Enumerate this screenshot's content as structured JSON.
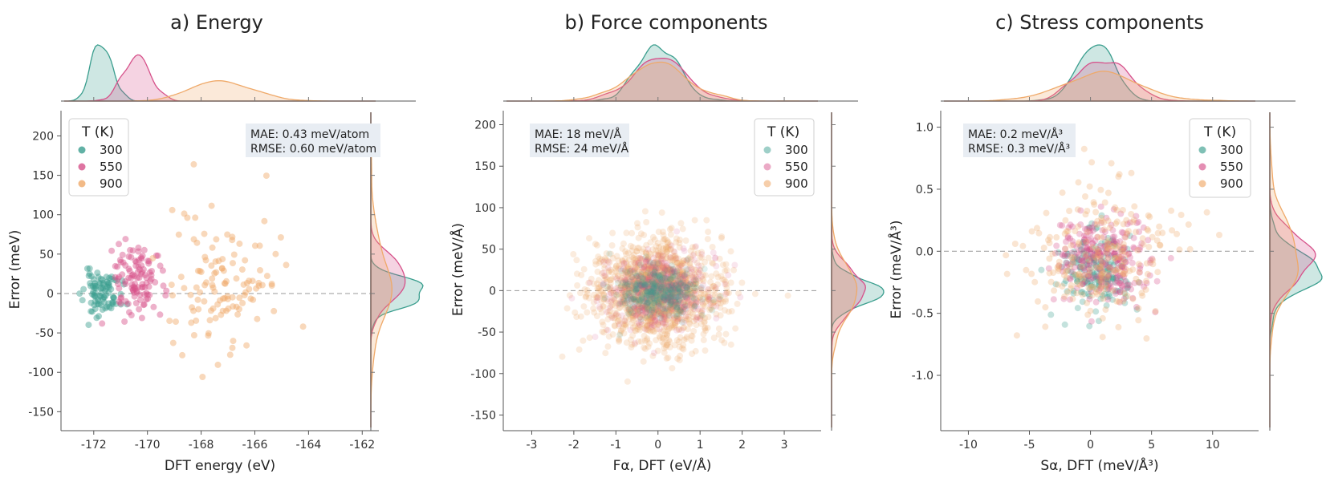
{
  "chart_data": [
    {
      "type": "scatter",
      "title": "a) Energy",
      "xlabel": "DFT energy (eV)",
      "ylabel": "Error (meV)",
      "xlim": [
        -173.1,
        -161.5
      ],
      "ylim": [
        -170,
        230
      ],
      "xticks": [
        -172,
        -170,
        -168,
        -166,
        -164,
        -162
      ],
      "yticks": [
        -150,
        -100,
        -50,
        0,
        50,
        100,
        150,
        200
      ],
      "xtick_labels": [
        "-172",
        "-170",
        "-168",
        "-166",
        "-164",
        "-162"
      ],
      "ytick_labels": [
        "-150",
        "-100",
        "-50",
        "0",
        "50",
        "100",
        "150",
        "200"
      ],
      "grid": false,
      "legend": {
        "title": "T (K)",
        "placement": "top-left"
      },
      "stats": {
        "mae": "MAE: 0.43 meV/atom",
        "rmse": "RMSE: 0.60 meV/atom",
        "placement": "top-right"
      },
      "series": [
        {
          "name": "300",
          "color": "#3a9e8e",
          "x_mean": -171.7,
          "x_sd": 0.35,
          "y_mean": 0,
          "y_sd": 14,
          "n": 90,
          "alpha": 0.45,
          "seed": 11
        },
        {
          "name": "550",
          "color": "#d6518a",
          "x_mean": -170.4,
          "x_sd": 0.5,
          "y_mean": 18,
          "y_sd": 25,
          "n": 110,
          "alpha": 0.45,
          "seed": 23
        },
        {
          "name": "900",
          "color": "#efa969",
          "x_mean": -167.1,
          "x_sd": 1.0,
          "y_mean": 15,
          "y_sd": 48,
          "n": 120,
          "alpha": 0.45,
          "seed": 37
        }
      ],
      "x_density_range": [
        -173.1,
        -161.5
      ],
      "y_density_range": [
        -170,
        230
      ]
    },
    {
      "type": "scatter",
      "title": "b) Force components",
      "xlabel": "Fα, DFT (eV/Å)",
      "ylabel": "Error (meV/Å)",
      "xlim": [
        -3.6,
        3.8
      ],
      "ylim": [
        -165,
        215
      ],
      "xticks": [
        -3,
        -2,
        -1,
        0,
        1,
        2,
        3
      ],
      "yticks": [
        -150,
        -100,
        -50,
        0,
        50,
        100,
        150,
        200
      ],
      "xtick_labels": [
        "-3",
        "-2",
        "-1",
        "0",
        "1",
        "2",
        "3"
      ],
      "ytick_labels": [
        "-150",
        "-100",
        "-50",
        "0",
        "50",
        "100",
        "150",
        "200"
      ],
      "grid": false,
      "legend": {
        "title": "T (K)",
        "placement": "top-right"
      },
      "stats": {
        "mae": "MAE: 18 meV/Å",
        "rmse": "RMSE: 24 meV/Å",
        "placement": "top-left"
      },
      "series": [
        {
          "name": "300",
          "color": "#3a9e8e",
          "x_mean": 0,
          "x_sd": 0.45,
          "y_mean": 0,
          "y_sd": 16,
          "n": 350,
          "alpha": 0.14,
          "seed": 41
        },
        {
          "name": "550",
          "color": "#d6518a",
          "x_mean": 0,
          "x_sd": 0.6,
          "y_mean": 0,
          "y_sd": 22,
          "n": 450,
          "alpha": 0.14,
          "seed": 53
        },
        {
          "name": "900",
          "color": "#efa969",
          "x_mean": 0,
          "x_sd": 0.75,
          "y_mean": 0,
          "y_sd": 30,
          "n": 1400,
          "alpha": 0.22,
          "seed": 67
        }
      ],
      "x_density_range": [
        -3.6,
        3.8
      ],
      "y_density_range": [
        -165,
        215
      ]
    },
    {
      "type": "scatter",
      "title": "c) Stress components",
      "xlabel": "Sα, DFT (meV/Å³)",
      "ylabel": "Error (meV/Å³)",
      "xlim": [
        -12,
        13.5
      ],
      "ylim": [
        -1.42,
        1.12
      ],
      "xticks": [
        -10,
        -5,
        0,
        5,
        10
      ],
      "yticks": [
        -1.0,
        -0.5,
        0.0,
        0.5,
        1.0
      ],
      "xtick_labels": [
        "-10",
        "-5",
        "0",
        "5",
        "10"
      ],
      "ytick_labels": [
        "-1.0",
        "-0.5",
        "0.0",
        "0.5",
        "1.0"
      ],
      "grid": false,
      "legend": {
        "title": "T (K)",
        "placement": "top-right"
      },
      "stats": {
        "mae": "MAE: 0.2 meV/Å³",
        "rmse": "RMSE: 0.3 meV/Å³",
        "placement": "top-left"
      },
      "series": [
        {
          "name": "300",
          "color": "#3a9e8e",
          "x_mean": 0.5,
          "x_sd": 1.5,
          "y_mean": -0.15,
          "y_sd": 0.15,
          "n": 200,
          "alpha": 0.3,
          "seed": 71
        },
        {
          "name": "550",
          "color": "#d6518a",
          "x_mean": 0.8,
          "x_sd": 2.0,
          "y_mean": -0.05,
          "y_sd": 0.18,
          "n": 260,
          "alpha": 0.3,
          "seed": 83
        },
        {
          "name": "900",
          "color": "#efa969",
          "x_mean": 0.8,
          "x_sd": 3.0,
          "y_mean": -0.05,
          "y_sd": 0.28,
          "n": 240,
          "alpha": 0.3,
          "seed": 97
        }
      ],
      "x_density_range": [
        -12,
        13.5
      ],
      "y_density_range": [
        -1.42,
        1.12
      ]
    }
  ]
}
